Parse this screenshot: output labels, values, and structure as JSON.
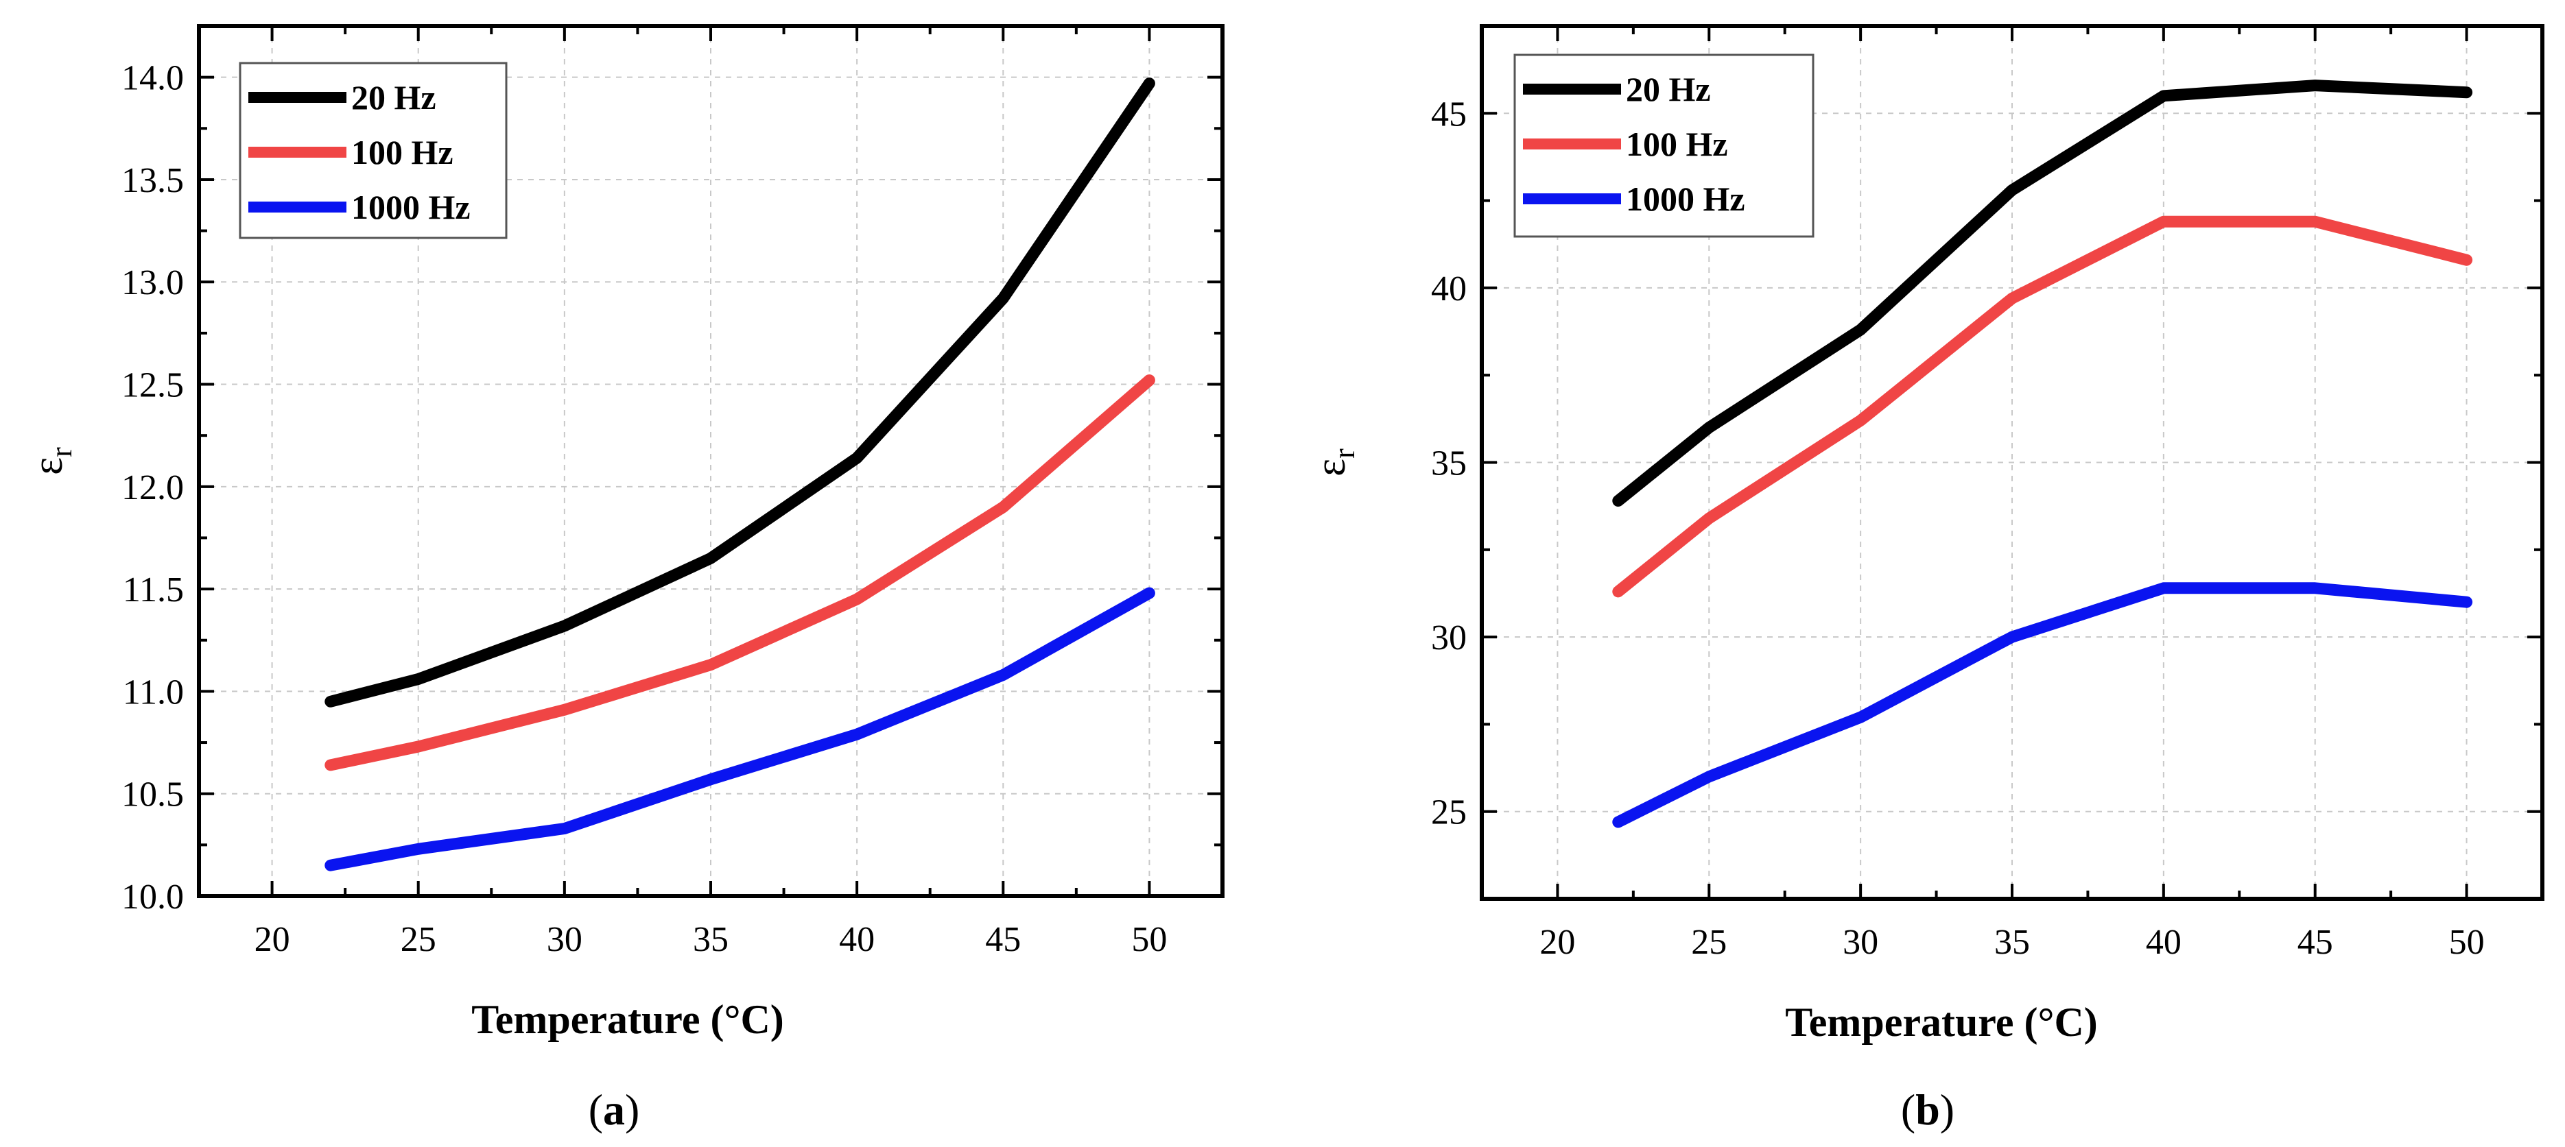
{
  "chart_data": [
    {
      "type": "line",
      "panel_label": "a",
      "caption_open": "(",
      "caption_close": ")",
      "title": "",
      "xlabel": "Temperature (°C)",
      "ylabel": "ε",
      "ylabel_sub": "r",
      "xlim": [
        17.5,
        52.5
      ],
      "ylim": [
        10.0,
        14.25
      ],
      "xticks": [
        20,
        25,
        30,
        35,
        40,
        45,
        50
      ],
      "yticks": [
        10.0,
        10.5,
        11.0,
        11.5,
        12.0,
        12.5,
        13.0,
        13.5,
        14.0
      ],
      "ytick_labels": [
        "10.0",
        "10.5",
        "11.0",
        "11.5",
        "12.0",
        "12.5",
        "13.0",
        "13.5",
        "14.0"
      ],
      "grid": true,
      "legend_position": "top-left",
      "x": [
        22,
        25,
        30,
        35,
        40,
        45,
        50
      ],
      "series": [
        {
          "name": "20 Hz",
          "color": "#000000",
          "values": [
            10.95,
            11.06,
            11.32,
            11.65,
            12.14,
            12.92,
            13.97
          ]
        },
        {
          "name": "100 Hz",
          "color": "#f04545",
          "values": [
            10.64,
            10.73,
            10.91,
            11.13,
            11.45,
            11.9,
            12.52
          ]
        },
        {
          "name": "1000 Hz",
          "color": "#0a14f0",
          "values": [
            10.15,
            10.23,
            10.33,
            10.57,
            10.79,
            11.08,
            11.48
          ]
        }
      ]
    },
    {
      "type": "line",
      "panel_label": "b",
      "caption_open": "(",
      "caption_close": ")",
      "title": "",
      "xlabel": "Temperature (°C)",
      "ylabel": "ε",
      "ylabel_sub": "r",
      "xlim": [
        17.5,
        52.5
      ],
      "ylim": [
        22.5,
        47.5
      ],
      "xticks": [
        20,
        25,
        30,
        35,
        40,
        45,
        50
      ],
      "yticks": [
        25,
        30,
        35,
        40,
        45
      ],
      "ytick_labels": [
        "25",
        "30",
        "35",
        "40",
        "45"
      ],
      "grid": true,
      "legend_position": "top-left",
      "x": [
        22,
        25,
        30,
        35,
        40,
        45,
        50
      ],
      "series": [
        {
          "name": "20 Hz",
          "color": "#000000",
          "values": [
            33.9,
            36.0,
            38.8,
            42.8,
            45.5,
            45.8,
            45.6
          ]
        },
        {
          "name": "100 Hz",
          "color": "#f04545",
          "values": [
            31.3,
            33.4,
            36.2,
            39.7,
            41.9,
            41.9,
            40.8
          ]
        },
        {
          "name": "1000 Hz",
          "color": "#0a14f0",
          "values": [
            24.7,
            26.0,
            27.7,
            30.0,
            31.4,
            31.4,
            31.0
          ]
        }
      ]
    }
  ]
}
